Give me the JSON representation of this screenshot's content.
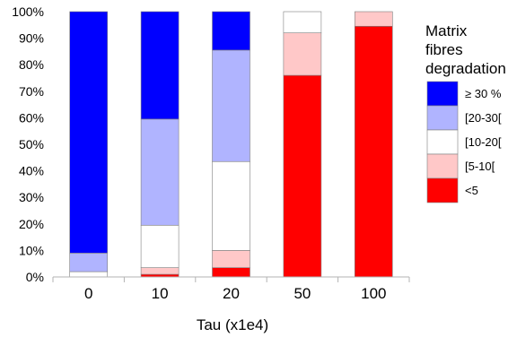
{
  "chart_data": {
    "type": "bar",
    "stacked": true,
    "normalized": true,
    "categories": [
      "0",
      "10",
      "20",
      "50",
      "100"
    ],
    "xlabel": "Tau (x1e4)",
    "ylabel": "",
    "ylim": [
      0,
      100
    ],
    "y_ticks": [
      "0%",
      "10%",
      "20%",
      "30%",
      "40%",
      "50%",
      "60%",
      "70%",
      "80%",
      "90%",
      "100%"
    ],
    "grid": false,
    "legend": {
      "title_lines": [
        "Matrix",
        "fibres",
        "degradation"
      ],
      "placement": "right"
    },
    "series": [
      {
        "name": "<5",
        "color": "#ff0000",
        "values": [
          0,
          1,
          3.5,
          76,
          94.5
        ]
      },
      {
        "name": "[5-10[",
        "color": "#ffc8c8",
        "values": [
          0,
          2.5,
          6.5,
          16,
          5.5
        ]
      },
      {
        "name": "[10-20[",
        "color": "#ffffff",
        "values": [
          2,
          16,
          33.5,
          8,
          0
        ]
      },
      {
        "name": "[20-30[",
        "color": "#b0b4ff",
        "values": [
          7,
          40,
          42,
          0,
          0
        ]
      },
      {
        "name": "≥ 30 %",
        "color": "#0000ff",
        "values": [
          91,
          40.5,
          14.5,
          0,
          0
        ]
      }
    ]
  }
}
